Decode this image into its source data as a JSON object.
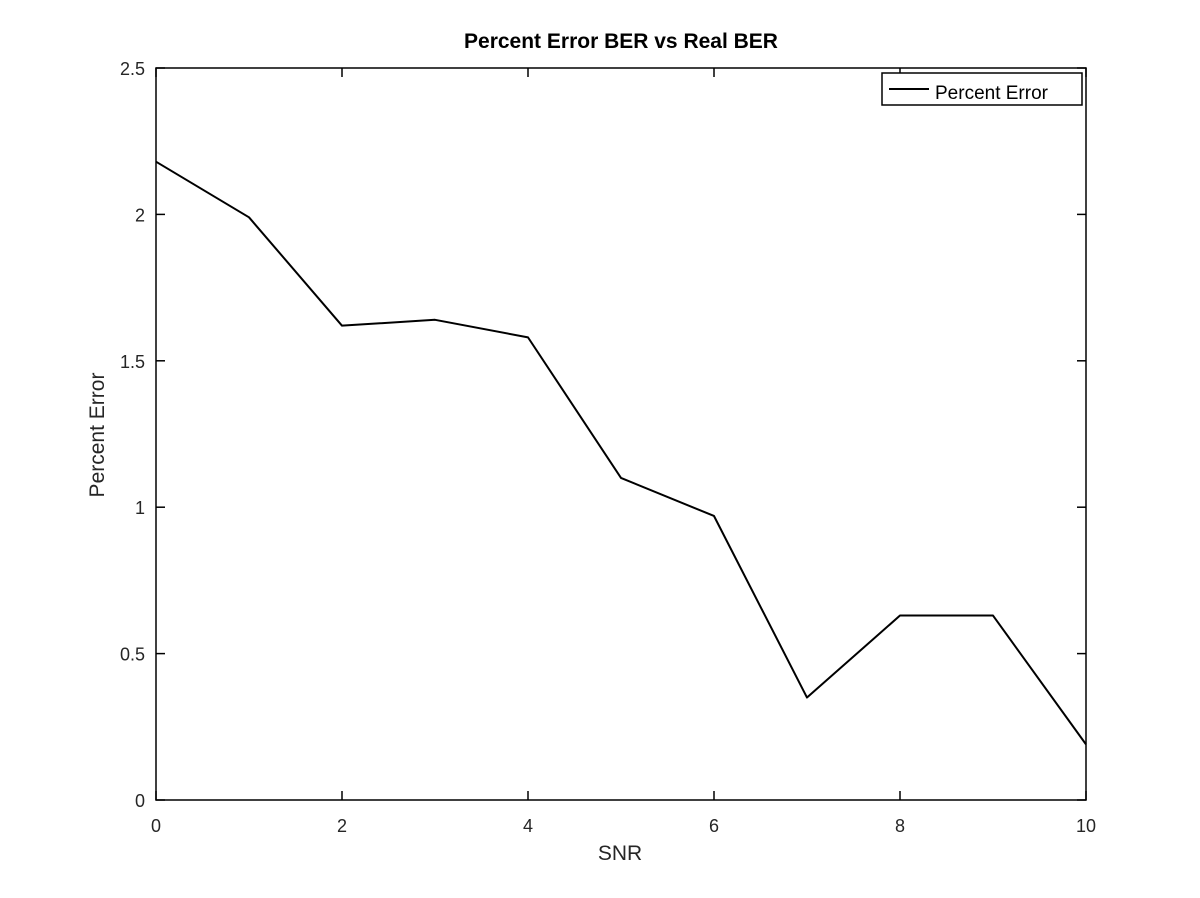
{
  "chart_data": {
    "type": "line",
    "title": "Percent Error BER vs Real BER",
    "xlabel": "SNR",
    "ylabel": "Percent Error",
    "xlim": [
      0,
      10
    ],
    "ylim": [
      0,
      2.5
    ],
    "xticks": [
      0,
      2,
      4,
      6,
      8,
      10
    ],
    "yticks": [
      0,
      0.5,
      1,
      1.5,
      2,
      2.5
    ],
    "xtick_labels": [
      "0",
      "2",
      "4",
      "6",
      "8",
      "10"
    ],
    "ytick_labels": [
      "0",
      "0.5",
      "1",
      "1.5",
      "2",
      "2.5"
    ],
    "grid": false,
    "legend_position": "top-right",
    "series": [
      {
        "name": "Percent Error",
        "color": "#000000",
        "x": [
          0,
          1,
          2,
          3,
          4,
          5,
          6,
          7,
          8,
          9,
          10
        ],
        "y": [
          2.18,
          1.99,
          1.62,
          1.64,
          1.58,
          1.1,
          0.97,
          0.35,
          0.63,
          0.63,
          0.19
        ]
      }
    ]
  }
}
